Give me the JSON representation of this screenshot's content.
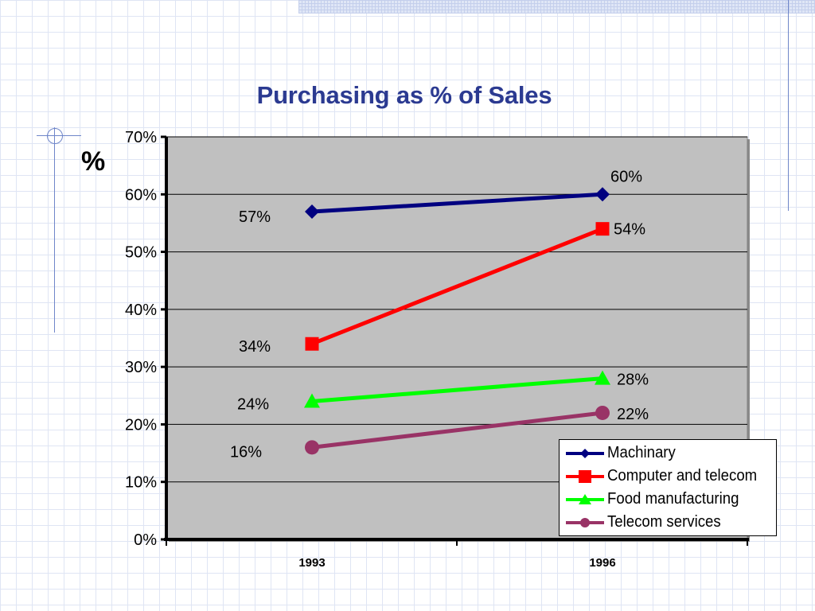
{
  "slide": {
    "title": "Purchasing as % of Sales",
    "y_unit": "%"
  },
  "chart_data": {
    "type": "line",
    "title": "",
    "xlabel": "",
    "ylabel": "%",
    "categories": [
      "1993",
      "1996"
    ],
    "ylim": [
      0,
      70
    ],
    "yticks": [
      "0%",
      "10%",
      "20%",
      "30%",
      "40%",
      "50%",
      "60%",
      "70%"
    ],
    "grid": true,
    "legend_position": "bottom-right",
    "plot_background": "#c0c0c0",
    "series": [
      {
        "name": "Machinary",
        "values": [
          57,
          60
        ],
        "labels": [
          "57%",
          "60%"
        ],
        "color": "#000080",
        "marker": "diamond"
      },
      {
        "name": "Computer and telecom",
        "values": [
          34,
          54
        ],
        "labels": [
          "34%",
          "54%"
        ],
        "color": "#ff0000",
        "marker": "square"
      },
      {
        "name": "Food manufacturing",
        "values": [
          24,
          28
        ],
        "labels": [
          "24%",
          "28%"
        ],
        "color": "#00ff00",
        "marker": "triangle"
      },
      {
        "name": "Telecom services",
        "values": [
          16,
          22
        ],
        "labels": [
          "16%",
          "22%"
        ],
        "color": "#993366",
        "marker": "circle"
      }
    ]
  }
}
